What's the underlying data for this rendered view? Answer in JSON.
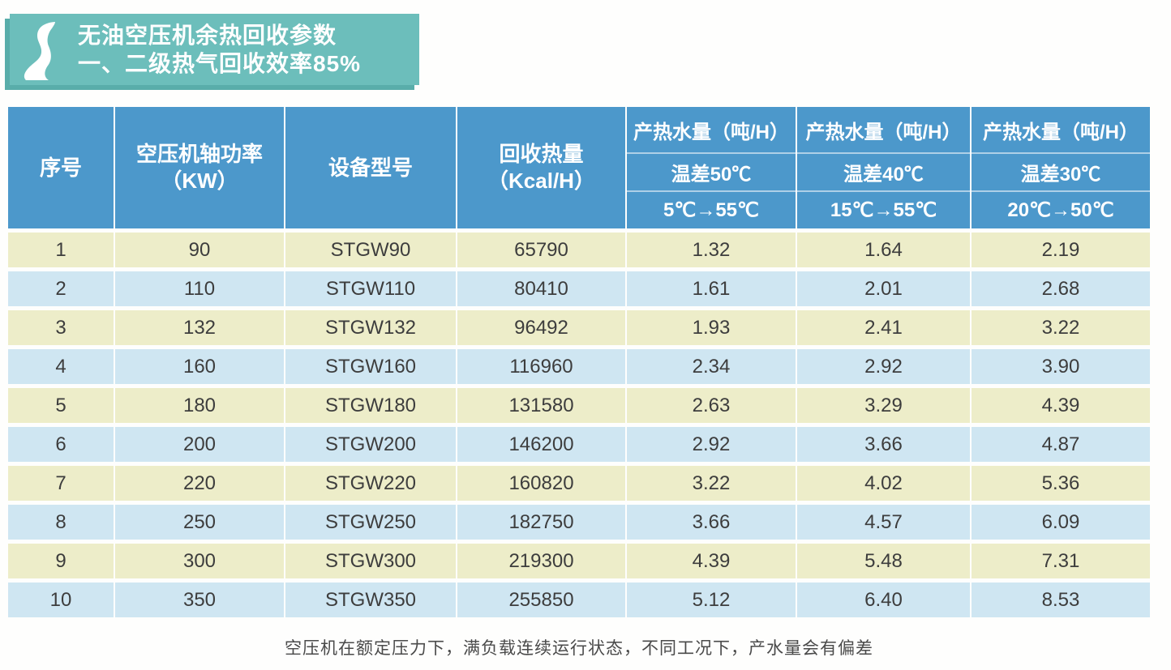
{
  "title_badge": {
    "line1": "无油空压机余热回收参数",
    "line2": "一、二级热气回收效率85%",
    "bg_color": "#6cbebb",
    "shadow_color": "#59adaa",
    "logo_icon": "white-ribbon-s-logo"
  },
  "table": {
    "header": {
      "serial": "序号",
      "shaft_power_line1": "空压机轴功率",
      "shaft_power_line2": "（KW）",
      "model": "设备型号",
      "heat_line1": "回收热量",
      "heat_line2": "（Kcal/H）",
      "bg_color": "#4c98cb",
      "water_groups": [
        {
          "title": "产热水量（吨/H）",
          "delta": "温差50℃",
          "range": "5℃→55℃"
        },
        {
          "title": "产热水量（吨/H）",
          "delta": "温差40℃",
          "range": "15℃→55℃"
        },
        {
          "title": "产热水量（吨/H）",
          "delta": "温差30℃",
          "range": "20℃→50℃"
        }
      ]
    },
    "rows": [
      [
        "1",
        "90",
        "STGW90",
        "65790",
        "1.32",
        "1.64",
        "2.19"
      ],
      [
        "2",
        "110",
        "STGW110",
        "80410",
        "1.61",
        "2.01",
        "2.68"
      ],
      [
        "3",
        "132",
        "STGW132",
        "96492",
        "1.93",
        "2.41",
        "3.22"
      ],
      [
        "4",
        "160",
        "STGW160",
        "116960",
        "2.34",
        "2.92",
        "3.90"
      ],
      [
        "5",
        "180",
        "STGW180",
        "131580",
        "2.63",
        "3.29",
        "4.39"
      ],
      [
        "6",
        "200",
        "STGW200",
        "146200",
        "2.92",
        "3.66",
        "4.87"
      ],
      [
        "7",
        "220",
        "STGW220",
        "160820",
        "3.22",
        "4.02",
        "5.36"
      ],
      [
        "8",
        "250",
        "STGW250",
        "182750",
        "3.66",
        "4.57",
        "6.09"
      ],
      [
        "9",
        "300",
        "STGW300",
        "219300",
        "4.39",
        "5.48",
        "7.31"
      ],
      [
        "10",
        "350",
        "STGW350",
        "255850",
        "5.12",
        "6.40",
        "8.53"
      ]
    ],
    "row_colors": {
      "odd": "#ededc9",
      "even": "#cfe6f2"
    }
  },
  "footer": {
    "note": "空压机在额定压力下，满负载连续运行状态，不同工况下，产水量会有偏差"
  }
}
